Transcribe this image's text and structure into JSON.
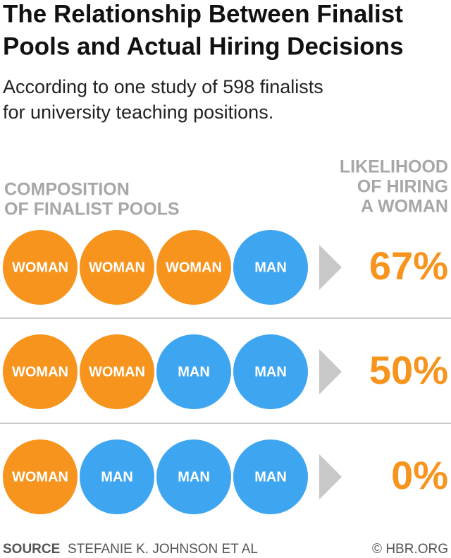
{
  "title": [
    "The Relationship Between Finalist",
    "Pools and Actual Hiring Decisions"
  ],
  "subtitle": [
    "According to one study of 598 finalists",
    "for university teaching positions."
  ],
  "left_header": [
    "COMPOSITION",
    "OF FINALIST POOLS"
  ],
  "right_header": [
    "LIKELIHOOD",
    "OF HIRING",
    "A WOMAN"
  ],
  "colors": {
    "WOMAN": "#f7941d",
    "MAN": "#3ea6f0"
  },
  "rows": [
    {
      "pool": [
        "WOMAN",
        "WOMAN",
        "WOMAN",
        "MAN"
      ],
      "likelihood": "67%"
    },
    {
      "pool": [
        "WOMAN",
        "WOMAN",
        "MAN",
        "MAN"
      ],
      "likelihood": "50%"
    },
    {
      "pool": [
        "WOMAN",
        "MAN",
        "MAN",
        "MAN"
      ],
      "likelihood": "0%"
    }
  ],
  "source_label": "SOURCE",
  "source": "STEFANIE K. JOHNSON ET AL",
  "credit": "© HBR.ORG"
}
